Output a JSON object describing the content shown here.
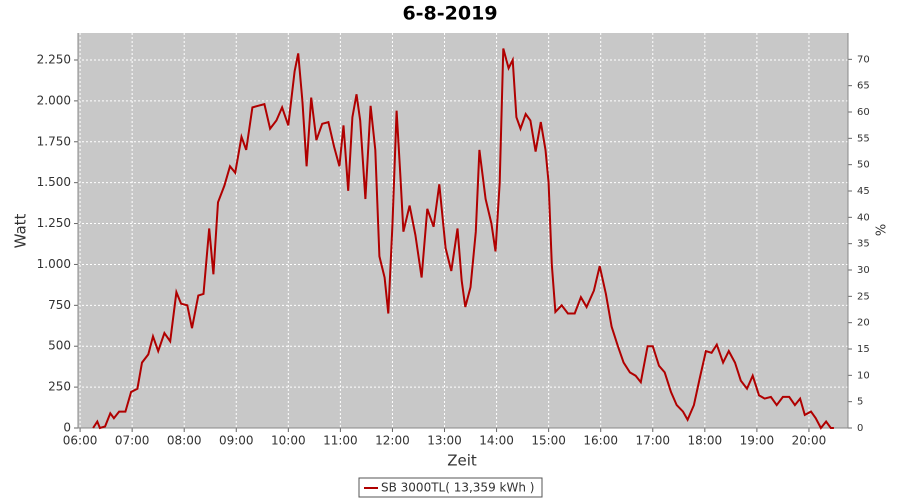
{
  "chart_data": {
    "type": "line",
    "title": "6-8-2019",
    "xlabel": "Zeit",
    "ylabel": "Watt",
    "y2label": "%",
    "legend": "bottom",
    "grid": true,
    "x": [
      6.25,
      6.33,
      6.38,
      6.48,
      6.58,
      6.65,
      6.75,
      6.87,
      6.98,
      7.1,
      7.19,
      7.31,
      7.4,
      7.5,
      7.62,
      7.73,
      7.85,
      7.94,
      8.06,
      8.15,
      8.27,
      8.37,
      8.48,
      8.56,
      8.65,
      8.77,
      8.88,
      8.98,
      9.1,
      9.19,
      9.31,
      9.42,
      9.54,
      9.65,
      9.77,
      9.88,
      10.0,
      10.12,
      10.19,
      10.27,
      10.35,
      10.44,
      10.54,
      10.65,
      10.77,
      10.88,
      10.98,
      11.06,
      11.15,
      11.23,
      11.31,
      11.38,
      11.48,
      11.58,
      11.67,
      11.75,
      11.85,
      11.92,
      12.0,
      12.08,
      12.15,
      12.21,
      12.33,
      12.44,
      12.56,
      12.67,
      12.79,
      12.9,
      13.02,
      13.13,
      13.25,
      13.33,
      13.4,
      13.5,
      13.6,
      13.67,
      13.79,
      13.9,
      13.98,
      14.06,
      14.13,
      14.23,
      14.31,
      14.38,
      14.46,
      14.56,
      14.65,
      14.75,
      14.85,
      14.94,
      15.0,
      15.06,
      15.13,
      15.25,
      15.37,
      15.5,
      15.62,
      15.73,
      15.87,
      15.98,
      16.1,
      16.21,
      16.33,
      16.44,
      16.56,
      16.67,
      16.77,
      16.9,
      17.0,
      17.12,
      17.23,
      17.35,
      17.46,
      17.58,
      17.67,
      17.79,
      17.9,
      18.02,
      18.13,
      18.23,
      18.35,
      18.46,
      18.58,
      18.69,
      18.81,
      18.92,
      19.04,
      19.15,
      19.27,
      19.38,
      19.5,
      19.62,
      19.73,
      19.83,
      19.92,
      20.04,
      20.13,
      20.23,
      20.33,
      20.42,
      20.48
    ],
    "series": [
      {
        "name": "SB 3000TL( 13,359 kWh )",
        "color": "#b00000",
        "values": [
          0,
          40,
          0,
          10,
          90,
          60,
          100,
          100,
          220,
          240,
          400,
          450,
          560,
          470,
          580,
          530,
          830,
          760,
          750,
          610,
          810,
          820,
          1220,
          940,
          1380,
          1480,
          1600,
          1560,
          1780,
          1700,
          1960,
          1970,
          1980,
          1830,
          1880,
          1960,
          1850,
          2180,
          2290,
          2000,
          1600,
          2020,
          1760,
          1860,
          1870,
          1720,
          1600,
          1850,
          1450,
          1900,
          2040,
          1880,
          1400,
          1970,
          1700,
          1050,
          920,
          700,
          1250,
          1940,
          1550,
          1200,
          1360,
          1180,
          920,
          1340,
          1230,
          1490,
          1100,
          960,
          1220,
          900,
          740,
          860,
          1200,
          1700,
          1400,
          1250,
          1080,
          1500,
          2320,
          2200,
          2250,
          1900,
          1830,
          1920,
          1880,
          1690,
          1870,
          1700,
          1500,
          1000,
          710,
          750,
          700,
          700,
          800,
          740,
          840,
          990,
          820,
          620,
          500,
          400,
          340,
          320,
          280,
          500,
          500,
          380,
          340,
          220,
          140,
          100,
          50,
          140,
          300,
          470,
          460,
          510,
          400,
          470,
          400,
          290,
          240,
          320,
          200,
          180,
          190,
          140,
          190,
          190,
          140,
          180,
          80,
          100,
          60,
          0,
          40,
          0,
          0
        ]
      }
    ],
    "xlim": [
      5.96,
      20.75
    ],
    "xticks": [
      {
        "value": 6,
        "label": "06:00"
      },
      {
        "value": 7,
        "label": "07:00"
      },
      {
        "value": 8,
        "label": "08:00"
      },
      {
        "value": 9,
        "label": "09:00"
      },
      {
        "value": 10,
        "label": "10:00"
      },
      {
        "value": 11,
        "label": "11:00"
      },
      {
        "value": 12,
        "label": "12:00"
      },
      {
        "value": 13,
        "label": "13:00"
      },
      {
        "value": 14,
        "label": "14:00"
      },
      {
        "value": 15,
        "label": "15:00"
      },
      {
        "value": 16,
        "label": "16:00"
      },
      {
        "value": 17,
        "label": "17:00"
      },
      {
        "value": 18,
        "label": "18:00"
      },
      {
        "value": 19,
        "label": "19:00"
      },
      {
        "value": 20,
        "label": "20:00"
      }
    ],
    "ylim": [
      0,
      2415
    ],
    "yticks": [
      0,
      250,
      500,
      750,
      {
        "value": 1000,
        "label": "1.000"
      },
      {
        "value": 1250,
        "label": "1.250"
      },
      {
        "value": 1500,
        "label": "1.500"
      },
      {
        "value": 1750,
        "label": "1.750"
      },
      {
        "value": 2000,
        "label": "2.000"
      },
      {
        "value": 2250,
        "label": "2.250"
      }
    ],
    "y2lim": [
      0,
      75
    ],
    "y2ticks": [
      0,
      5,
      10,
      15,
      20,
      25,
      30,
      35,
      40,
      45,
      50,
      55,
      60,
      65,
      70
    ]
  }
}
